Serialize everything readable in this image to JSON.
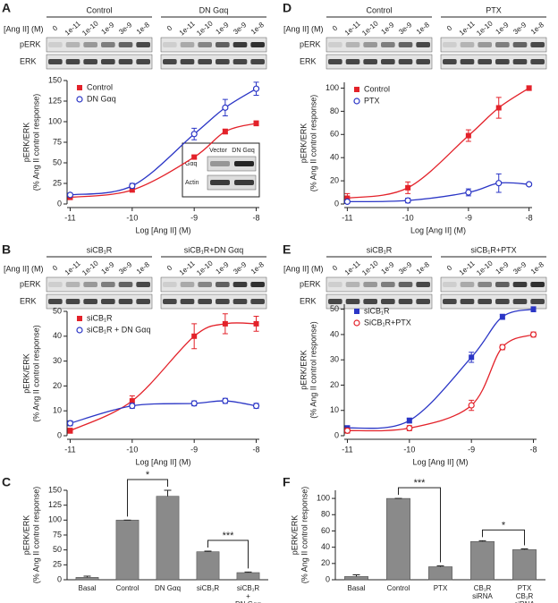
{
  "panel_labels": [
    "A",
    "B",
    "C",
    "D",
    "E",
    "F"
  ],
  "blots": [
    {
      "groups": [
        "Control",
        "DN Gαq"
      ],
      "dose_label": "[Ang II] (M)",
      "doses": [
        "0",
        "1e-11",
        "1e-10",
        "1e-9",
        "3e-9",
        "1e-8"
      ],
      "rows": [
        "pERK",
        "ERK"
      ]
    },
    {
      "groups": [
        "siCB₁R",
        "siCB₁R+DN Gαq"
      ],
      "dose_label": "[Ang II] (M)",
      "doses": [
        "0",
        "1e-11",
        "1e-10",
        "1e-9",
        "3e-9",
        "1e-8"
      ],
      "rows": [
        "pERK",
        "ERK"
      ]
    },
    {
      "groups": [
        "Control",
        "PTX"
      ],
      "dose_label": "[Ang II] (M)",
      "doses": [
        "0",
        "1e-11",
        "1e-10",
        "1e-9",
        "3e-9",
        "1e-8"
      ],
      "rows": [
        "pERK",
        "ERK"
      ]
    },
    {
      "groups": [
        "siCB₁R",
        "siCB₁R+PTX"
      ],
      "dose_label": "[Ang II] (M)",
      "doses": [
        "0",
        "1e-11",
        "1e-10",
        "1e-9",
        "3e-9",
        "1e-8"
      ],
      "rows": [
        "pERK",
        "ERK"
      ]
    }
  ],
  "inset_blot": {
    "lanes": [
      "Vector",
      "DN Gαq"
    ],
    "rows": [
      "Gαq",
      "Actin"
    ]
  },
  "chart_data": [
    {
      "type": "line",
      "ylabel": [
        "pERK/ERK",
        "(% Ang II control response)"
      ],
      "xlabel": "Log [Ang II] (M)",
      "x": [
        -11,
        -10,
        -9,
        -8.5,
        -8
      ],
      "xlim": [
        -11.05,
        -7.95
      ],
      "xticks": [
        -11,
        -10,
        -9,
        -8
      ],
      "ylim": [
        0,
        150
      ],
      "yticks": [
        0,
        25,
        50,
        75,
        100,
        125,
        150
      ],
      "legend": "upper left",
      "series": [
        {
          "name": "Control",
          "color": "#e3222a",
          "marker": "square",
          "values": [
            8,
            17,
            57,
            88,
            98
          ],
          "errors": [
            2,
            2,
            2,
            3,
            3
          ]
        },
        {
          "name": "DN Gαq",
          "color": "#2b36c6",
          "marker": "circle",
          "values": [
            11,
            22,
            85,
            117,
            140
          ],
          "errors": [
            2,
            3,
            7,
            10,
            8
          ]
        }
      ]
    },
    {
      "type": "line",
      "ylabel": [
        "pERK/ERK",
        "(% Ang II control response)"
      ],
      "xlabel": "Log [Ang II] (M)",
      "x": [
        -11,
        -10,
        -9,
        -8.5,
        -8
      ],
      "xlim": [
        -11.05,
        -7.95
      ],
      "xticks": [
        -11,
        -10,
        -9,
        -8
      ],
      "ylim": [
        0,
        50
      ],
      "yticks": [
        0,
        10,
        20,
        30,
        40,
        50
      ],
      "legend": "upper left",
      "series": [
        {
          "name": "siCB₁R",
          "color": "#e3222a",
          "marker": "square",
          "values": [
            2,
            14,
            40,
            45,
            45
          ],
          "errors": [
            1,
            2,
            5,
            4,
            3
          ]
        },
        {
          "name": "siCB₁R + DN Gαq",
          "color": "#2b36c6",
          "marker": "circle",
          "values": [
            5,
            12,
            13,
            14,
            12
          ],
          "errors": [
            1,
            1,
            1,
            1,
            1
          ]
        }
      ]
    },
    {
      "type": "bar",
      "ylabel": [
        "pERK/ERK",
        "(% Ang II control response)"
      ],
      "color": "#8a8a8a",
      "categories": [
        [
          "Basal"
        ],
        [
          "Control"
        ],
        [
          "DN Gαq"
        ],
        [
          "siCB₁R"
        ],
        [
          "siCB₁R",
          "+",
          "DN Gαq"
        ]
      ],
      "values": [
        4,
        100,
        140,
        47,
        12
      ],
      "errors": [
        2,
        0,
        10,
        1,
        1
      ],
      "ylim": [
        0,
        150
      ],
      "yticks": [
        0,
        25,
        50,
        75,
        100,
        125,
        150
      ],
      "annotations": [
        {
          "text": "*",
          "between": [
            "Control",
            "DN Gαq"
          ]
        },
        {
          "text": "***",
          "between": [
            "siCB₁R",
            "siCB₁R + DN Gαq"
          ]
        }
      ]
    },
    {
      "type": "line",
      "ylabel": [
        "pERK/ERK",
        "(% Ang II control response)"
      ],
      "xlabel": "Log [Ang II] (M)",
      "x": [
        -11,
        -10,
        -9,
        -8.5,
        -8
      ],
      "xlim": [
        -11.05,
        -7.95
      ],
      "xticks": [
        -11,
        -10,
        -9,
        -8
      ],
      "ylim": [
        0,
        105
      ],
      "yticks": [
        0,
        20,
        40,
        60,
        80,
        100
      ],
      "legend": "upper left",
      "series": [
        {
          "name": "Control",
          "color": "#e3222a",
          "marker": "square",
          "values": [
            5,
            14,
            59,
            83,
            100
          ],
          "errors": [
            4,
            5,
            5,
            9,
            2
          ]
        },
        {
          "name": "PTX",
          "color": "#2b36c6",
          "marker": "circle",
          "values": [
            2,
            3,
            10,
            18,
            17
          ],
          "errors": [
            1,
            2,
            3,
            8,
            1
          ]
        }
      ]
    },
    {
      "type": "line",
      "ylabel": [
        "pERK/ERK",
        "(% Ang II control response)"
      ],
      "xlabel": "Log [Ang II] (M)",
      "x": [
        -11,
        -10,
        -9,
        -8.5,
        -8
      ],
      "xlim": [
        -11.05,
        -7.95
      ],
      "xticks": [
        -11,
        -10,
        -9,
        -8
      ],
      "ylim": [
        0,
        52
      ],
      "yticks": [
        0,
        10,
        20,
        30,
        40,
        50
      ],
      "legend": "upper left",
      "series": [
        {
          "name": "siCB₁R",
          "color": "#2b36c6",
          "marker": "square",
          "values": [
            3,
            6,
            31,
            47,
            50
          ],
          "errors": [
            1,
            1,
            2,
            1,
            1
          ]
        },
        {
          "name": "SiCB₁R+PTX",
          "color": "#e3222a",
          "marker": "circle",
          "values": [
            2,
            3,
            12,
            35,
            40
          ],
          "errors": [
            1,
            1,
            2,
            1,
            1
          ]
        }
      ]
    },
    {
      "type": "bar",
      "ylabel": [
        "pERK/ERK",
        "(% Ang II control response)"
      ],
      "color": "#8a8a8a",
      "categories": [
        [
          "Basal"
        ],
        [
          "Control"
        ],
        [
          "PTX"
        ],
        [
          "CB₁R",
          "siRNA"
        ],
        [
          "PTX",
          "CB₁R",
          "siRNA"
        ]
      ],
      "values": [
        4,
        100,
        16,
        47,
        37
      ],
      "errors": [
        2,
        0,
        1,
        1,
        1
      ],
      "ylim": [
        0,
        110
      ],
      "yticks": [
        0,
        20,
        40,
        60,
        80,
        100
      ],
      "annotations": [
        {
          "text": "***",
          "between": [
            "Control",
            "PTX"
          ]
        },
        {
          "text": "*",
          "between": [
            "CB₁R siRNA",
            "PTX CB₁R siRNA"
          ]
        }
      ]
    }
  ]
}
